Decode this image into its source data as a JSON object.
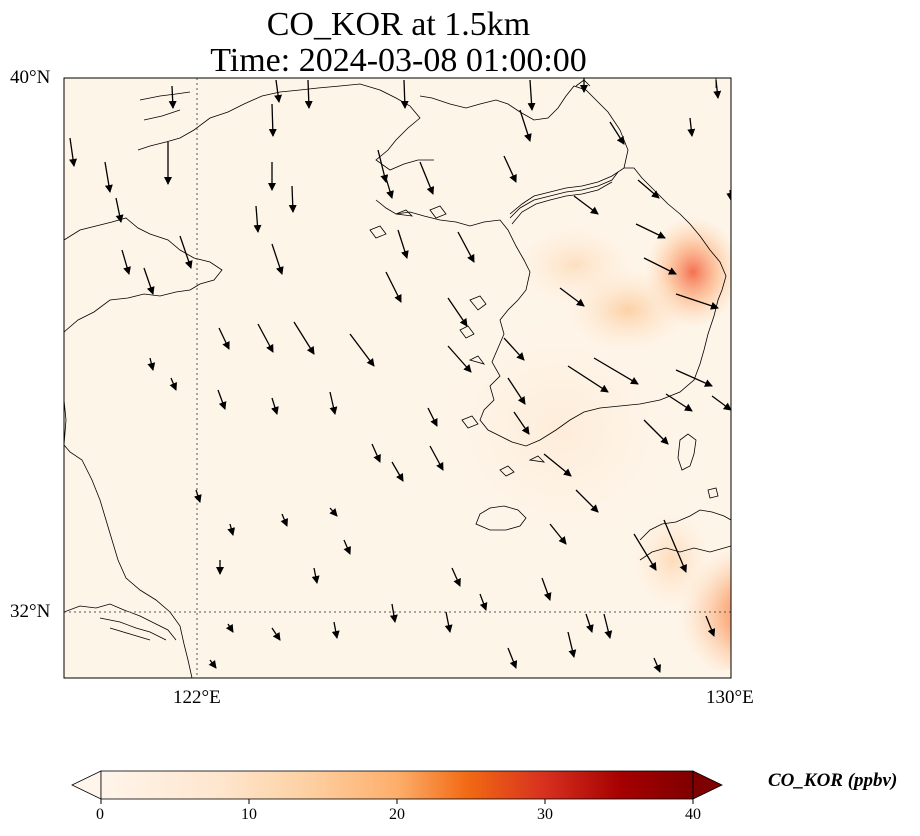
{
  "title": {
    "line1": "CO_KOR at 1.5km",
    "line2": "Time: 2024-03-08 01:00:00"
  },
  "map": {
    "variable": "CO_KOR",
    "level": "1.5km",
    "time": "2024-03-08 01:00:00",
    "extent": {
      "lon_min": 119,
      "lon_max": 130,
      "lat_min": 31,
      "lat_max": 40
    },
    "lat_labels": [
      "40°N",
      "32°N"
    ],
    "lon_labels": [
      "122°E",
      "130°E"
    ],
    "gridlines": {
      "lon": 122,
      "lat": 32,
      "style": "dotted"
    },
    "background_color": "#fef5e9"
  },
  "colorbar": {
    "label": "CO_KOR (ppbv)",
    "min": 0,
    "max": 40,
    "ticks": [
      "0",
      "10",
      "20",
      "30",
      "40"
    ],
    "extend": "both",
    "colormap": "Oranges/Reds",
    "colors": [
      "#fff5eb",
      "#fdd49e",
      "#fdae6b",
      "#f16913",
      "#d7301f",
      "#990000",
      "#7f0000"
    ]
  }
}
